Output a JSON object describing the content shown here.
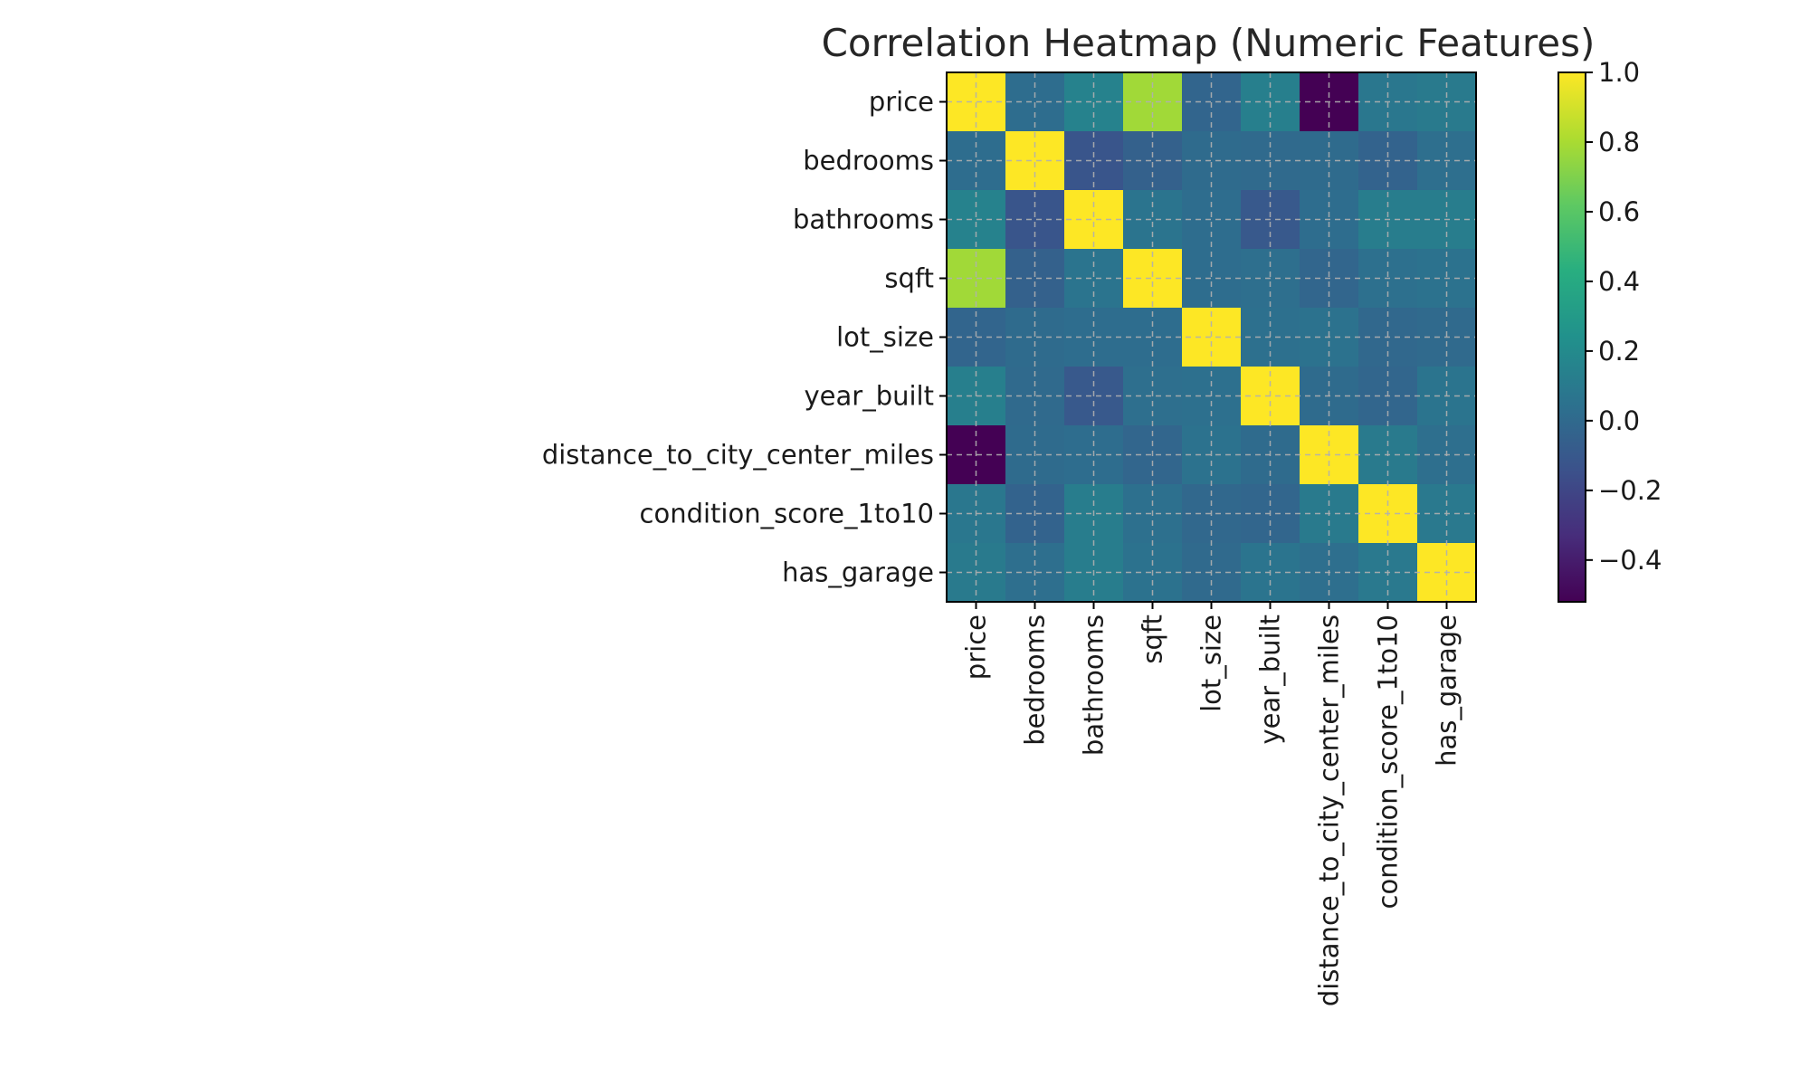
{
  "chart_data": {
    "type": "heatmap",
    "title": "Correlation Heatmap (Numeric Features)",
    "x_labels": [
      "price",
      "bedrooms",
      "bathrooms",
      "sqft",
      "lot_size",
      "year_built",
      "distance_to_city_center_miles",
      "condition_score_1to10",
      "has_garage"
    ],
    "y_labels": [
      "price",
      "bedrooms",
      "bathrooms",
      "sqft",
      "lot_size",
      "year_built",
      "distance_to_city_center_miles",
      "condition_score_1to10",
      "has_garage"
    ],
    "values": [
      [
        1.0,
        0.02,
        0.15,
        0.78,
        -0.03,
        0.13,
        -0.52,
        0.08,
        0.1
      ],
      [
        0.02,
        1.0,
        -0.12,
        -0.05,
        0.01,
        0.0,
        0.01,
        -0.04,
        0.03
      ],
      [
        0.15,
        -0.12,
        1.0,
        0.06,
        0.02,
        -0.1,
        0.02,
        0.12,
        0.12
      ],
      [
        0.78,
        -0.05,
        0.06,
        1.0,
        0.02,
        0.03,
        -0.02,
        0.04,
        0.05
      ],
      [
        -0.03,
        0.01,
        0.02,
        0.02,
        1.0,
        0.04,
        0.05,
        -0.01,
        0.0
      ],
      [
        0.13,
        0.0,
        -0.1,
        0.03,
        0.04,
        1.0,
        0.01,
        -0.02,
        0.06
      ],
      [
        -0.52,
        0.01,
        0.02,
        -0.02,
        0.05,
        0.01,
        1.0,
        0.1,
        0.03
      ],
      [
        0.08,
        -0.04,
        0.12,
        0.04,
        -0.01,
        -0.02,
        0.1,
        1.0,
        0.09
      ],
      [
        0.1,
        0.03,
        0.12,
        0.05,
        0.0,
        0.06,
        0.03,
        0.09,
        1.0
      ]
    ],
    "colormap": "viridis",
    "vmin": -0.52,
    "vmax": 1.0,
    "colorbar_ticks": [
      1.0,
      0.8,
      0.6,
      0.4,
      0.2,
      0.0,
      -0.2,
      -0.4
    ],
    "colorbar_tick_labels": [
      "1.0",
      "0.8",
      "0.6",
      "0.4",
      "0.2",
      "0.0",
      "−0.2",
      "−0.4"
    ],
    "grid": true
  }
}
